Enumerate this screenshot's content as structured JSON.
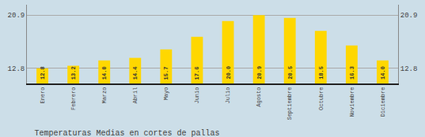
{
  "chart_data": {
    "type": "bar",
    "title": "Temperaturas Medias en cortes de pallas",
    "categories": [
      "Enero",
      "Febrero",
      "Marzo",
      "Abril",
      "Mayo",
      "Junio",
      "Julio",
      "Agosto",
      "Septiembre",
      "Octubre",
      "Noviembre",
      "Diciembre"
    ],
    "values": [
      12.8,
      13.2,
      14.0,
      14.4,
      15.7,
      17.6,
      20.0,
      20.9,
      20.5,
      18.5,
      16.3,
      14.0
    ],
    "value_labels": [
      "12.8",
      "13.2",
      "14.0",
      "14.4",
      "15.7",
      "17.6",
      "20.0",
      "20.9",
      "20.5",
      "18.5",
      "16.3",
      "14.0"
    ],
    "color": "#FFD700",
    "ylim": [
      10.5,
      22.5
    ],
    "yticks": [
      12.8,
      20.9
    ],
    "grid": true,
    "data_labels": true
  }
}
